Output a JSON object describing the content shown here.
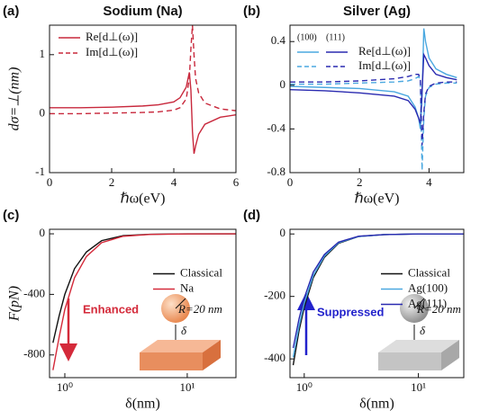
{
  "chart_data": [
    {
      "type": "line",
      "panel": "(a)",
      "title": "Sodium (Na)",
      "xlabel": "ℏω(eV)",
      "ylabel": "dσ=⊥(nm)",
      "xlim": [
        0,
        6
      ],
      "xticks": [
        0,
        2,
        4,
        6
      ],
      "ylim": [
        -1,
        1.5
      ],
      "yticks": [
        -1,
        0,
        1
      ],
      "legend": "upper left",
      "x": [
        0,
        1,
        2,
        3,
        3.5,
        4,
        4.2,
        4.4,
        4.5,
        4.55,
        4.6,
        4.65,
        4.7,
        4.8,
        5,
        5.5,
        6
      ],
      "series": [
        {
          "name": "Re[d⊥(ω)]",
          "color": "#c8283c",
          "dashed": false,
          "values": [
            0.1,
            0.1,
            0.11,
            0.13,
            0.15,
            0.2,
            0.27,
            0.45,
            0.7,
            0.4,
            -0.3,
            -0.68,
            -0.55,
            -0.35,
            -0.18,
            -0.06,
            -0.02
          ]
        },
        {
          "name": "Im[d⊥(ω)]",
          "color": "#c8283c",
          "dashed": true,
          "values": [
            0,
            0,
            0.01,
            0.02,
            0.03,
            0.06,
            0.1,
            0.25,
            0.6,
            1.1,
            1.5,
            1.0,
            0.6,
            0.35,
            0.18,
            0.08,
            0.05
          ]
        }
      ]
    },
    {
      "type": "line",
      "panel": "(b)",
      "title": "Silver (Ag)",
      "xlabel": "ℏω(eV)",
      "xlim": [
        0,
        5
      ],
      "xticks": [
        0,
        2,
        4
      ],
      "ylim": [
        -0.8,
        0.55
      ],
      "yticks": [
        -0.8,
        -0.4,
        0,
        0.4
      ],
      "legend": "upper left",
      "legend_columns": [
        "(100)",
        "(111)"
      ],
      "x": [
        0,
        1,
        2,
        3,
        3.4,
        3.6,
        3.7,
        3.75,
        3.8,
        3.85,
        3.9,
        4,
        4.2,
        4.5,
        4.8
      ],
      "series": [
        {
          "name": "Re[d⊥(ω)]",
          "color": "#4aa8e0",
          "dashed": false,
          "values": [
            -0.01,
            -0.02,
            -0.03,
            -0.06,
            -0.1,
            -0.2,
            -0.3,
            -0.4,
            -0.1,
            0.52,
            0.4,
            0.25,
            0.15,
            0.1,
            0.07
          ]
        },
        {
          "name": "Re[d⊥(ω)]",
          "color": "#2a2ab0",
          "dashed": false,
          "values": [
            -0.04,
            -0.05,
            -0.07,
            -0.1,
            -0.14,
            -0.22,
            -0.3,
            -0.35,
            -0.05,
            0.28,
            0.25,
            0.18,
            0.1,
            0.07,
            0.05
          ]
        },
        {
          "name": "Im[d⊥(ω)]",
          "color": "#4aa8e0",
          "dashed": true,
          "values": [
            0.01,
            0.01,
            0.02,
            0.03,
            0.04,
            0.06,
            0.08,
            0.05,
            -0.78,
            -0.3,
            -0.1,
            -0.02,
            0.01,
            0.02,
            0.02
          ]
        },
        {
          "name": "Im[d⊥(ω)]",
          "color": "#2a2ab0",
          "dashed": true,
          "values": [
            0.03,
            0.03,
            0.04,
            0.06,
            0.08,
            0.1,
            0.1,
            0.05,
            -0.55,
            -0.25,
            -0.08,
            -0.01,
            0.02,
            0.03,
            0.03
          ]
        }
      ]
    },
    {
      "type": "line",
      "panel": "(c)",
      "xlabel": "δ(nm)",
      "ylabel": "F(pN)",
      "xscale": "log",
      "xlim": [
        0.75,
        25
      ],
      "xticks": [
        {
          "value": 1,
          "label": "10⁰"
        },
        {
          "value": 10,
          "label": "10¹"
        }
      ],
      "ylim": [
        -950,
        30
      ],
      "yticks": [
        -800,
        -400,
        0
      ],
      "legend": "center right",
      "annotations": [
        "Enhanced",
        "R=20 nm",
        "δ"
      ],
      "x": [
        0.8,
        0.9,
        1,
        1.2,
        1.5,
        2,
        3,
        5,
        10,
        25
      ],
      "series": [
        {
          "name": "Classical",
          "color": "#111111",
          "dashed": false,
          "values": [
            -720,
            -540,
            -400,
            -230,
            -120,
            -45,
            -12,
            -3,
            0,
            0
          ]
        },
        {
          "name": "Na",
          "color": "#d42a3a",
          "dashed": false,
          "values": [
            -900,
            -680,
            -500,
            -290,
            -150,
            -58,
            -16,
            -4,
            -1,
            0
          ]
        }
      ]
    },
    {
      "type": "line",
      "panel": "(d)",
      "xlabel": "δ(nm)",
      "xscale": "log",
      "xlim": [
        0.75,
        25
      ],
      "xticks": [
        {
          "value": 1,
          "label": "10⁰"
        },
        {
          "value": 10,
          "label": "10¹"
        }
      ],
      "ylim": [
        -460,
        15
      ],
      "yticks": [
        -400,
        -200,
        0
      ],
      "legend": "center right",
      "annotations": [
        "Suppressed",
        "R=20 nm",
        "δ"
      ],
      "x": [
        0.8,
        0.9,
        1,
        1.2,
        1.5,
        2,
        3,
        5,
        10,
        25
      ],
      "series": [
        {
          "name": "Classical",
          "color": "#111111",
          "dashed": false,
          "values": [
            -420,
            -310,
            -235,
            -140,
            -75,
            -30,
            -8,
            -2,
            0,
            0
          ]
        },
        {
          "name": "Ag(100)",
          "color": "#4aa8e0",
          "dashed": false,
          "values": [
            -395,
            -295,
            -222,
            -133,
            -71,
            -28,
            -8,
            -2,
            0,
            0
          ]
        },
        {
          "name": "Ag(111)",
          "color": "#2a2ab0",
          "dashed": false,
          "values": [
            -365,
            -272,
            -205,
            -122,
            -66,
            -26,
            -7,
            -2,
            0,
            0
          ]
        }
      ]
    }
  ]
}
